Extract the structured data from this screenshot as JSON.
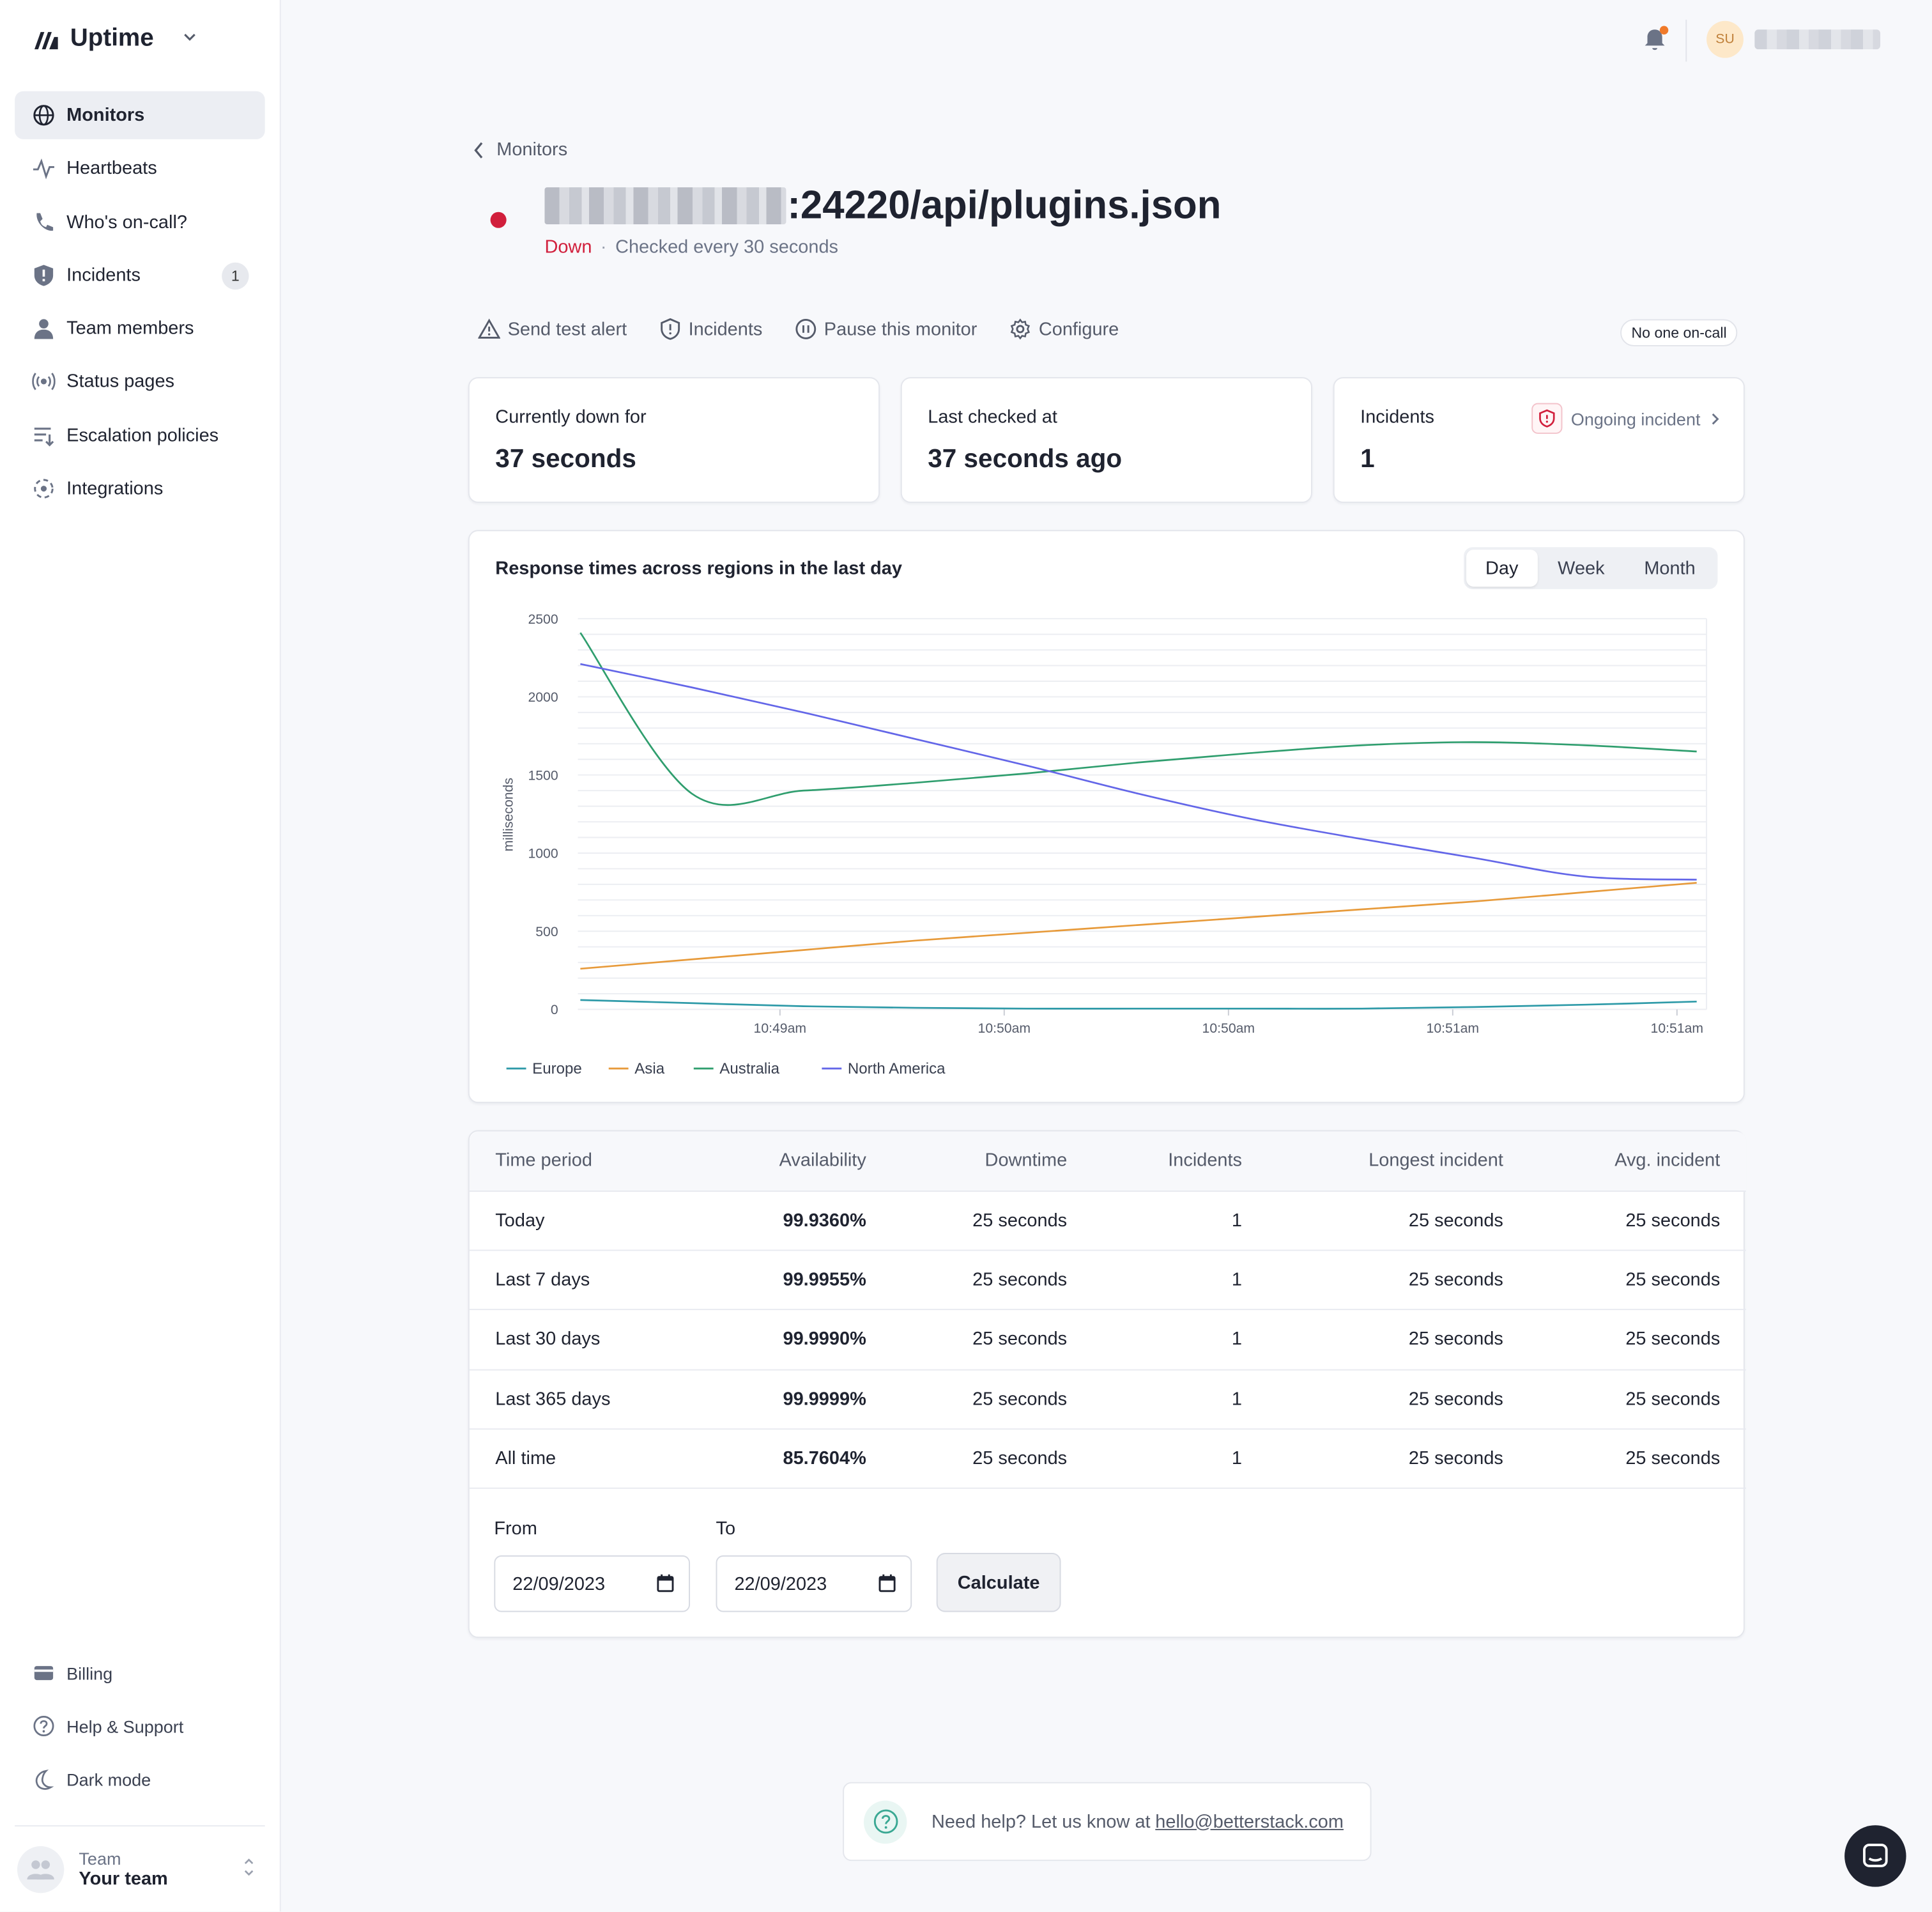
{
  "app": {
    "name": "Uptime"
  },
  "sidebar": {
    "items": [
      {
        "label": "Monitors",
        "icon": "globe-icon",
        "active": true
      },
      {
        "label": "Heartbeats",
        "icon": "pulse-icon"
      },
      {
        "label": "Who's on-call?",
        "icon": "phone-icon"
      },
      {
        "label": "Incidents",
        "icon": "shield-icon",
        "badge": "1"
      },
      {
        "label": "Team members",
        "icon": "person-icon"
      },
      {
        "label": "Status pages",
        "icon": "broadcast-icon"
      },
      {
        "label": "Escalation policies",
        "icon": "escalation-icon"
      },
      {
        "label": "Integrations",
        "icon": "integrations-icon"
      }
    ],
    "bottom": [
      {
        "label": "Billing",
        "icon": "credit-card-icon"
      },
      {
        "label": "Help & Support",
        "icon": "question-circle-icon"
      },
      {
        "label": "Dark mode",
        "icon": "moon-icon"
      }
    ],
    "team": {
      "label": "Team",
      "name": "Your team"
    }
  },
  "topbar": {
    "avatar_initials": "SU"
  },
  "header": {
    "back_label": "Monitors",
    "url_suffix": ":24220/api/plugins.json",
    "status": "Down",
    "check_interval": "Checked every 30 seconds"
  },
  "actions": {
    "send_test_alert": "Send test alert",
    "incidents": "Incidents",
    "pause": "Pause this monitor",
    "configure": "Configure",
    "oncall": "No one on-call"
  },
  "stats": {
    "down_label": "Currently down for",
    "down_value": "37 seconds",
    "checked_label": "Last checked at",
    "checked_value": "37 seconds ago",
    "incidents_label": "Incidents",
    "incidents_value": "1",
    "ongoing_label": "Ongoing incident"
  },
  "chart": {
    "title": "Response times across regions in the last day",
    "ranges": [
      "Day",
      "Week",
      "Month"
    ],
    "active_range": "Day"
  },
  "chart_data": {
    "type": "line",
    "ylabel": "milliseconds",
    "ylim": [
      0,
      2500
    ],
    "yticks": [
      0,
      500,
      1000,
      1500,
      2000,
      2500
    ],
    "xticks": [
      "10:49am",
      "10:50am",
      "10:50am",
      "10:51am",
      "10:51am"
    ],
    "x": [
      0,
      0.5,
      1,
      1.5,
      2,
      2.5,
      3,
      3.5,
      4,
      4.5,
      5
    ],
    "legend_position": "bottom-left",
    "series": [
      {
        "name": "Europe",
        "color": "#2e9aa8",
        "values": [
          60,
          40,
          20,
          10,
          5,
          5,
          5,
          5,
          15,
          30,
          50
        ]
      },
      {
        "name": "Asia",
        "color": "#e79a3a",
        "values": [
          260,
          320,
          380,
          440,
          490,
          540,
          590,
          640,
          690,
          750,
          810
        ]
      },
      {
        "name": "Australia",
        "color": "#2f9e6e",
        "values": [
          2410,
          1380,
          1400,
          1450,
          1510,
          1580,
          1640,
          1690,
          1710,
          1690,
          1650
        ]
      },
      {
        "name": "North America",
        "color": "#6366e8",
        "values": [
          2210,
          2060,
          1900,
          1730,
          1560,
          1380,
          1220,
          1090,
          970,
          850,
          830
        ]
      }
    ]
  },
  "table": {
    "headers": [
      "Time period",
      "Availability",
      "Downtime",
      "Incidents",
      "Longest incident",
      "Avg. incident"
    ],
    "rows": [
      [
        "Today",
        "99.9360%",
        "25 seconds",
        "1",
        "25 seconds",
        "25 seconds"
      ],
      [
        "Last 7 days",
        "99.9955%",
        "25 seconds",
        "1",
        "25 seconds",
        "25 seconds"
      ],
      [
        "Last 30 days",
        "99.9990%",
        "25 seconds",
        "1",
        "25 seconds",
        "25 seconds"
      ],
      [
        "Last 365 days",
        "99.9999%",
        "25 seconds",
        "1",
        "25 seconds",
        "25 seconds"
      ],
      [
        "All time",
        "85.7604%",
        "25 seconds",
        "1",
        "25 seconds",
        "25 seconds"
      ]
    ]
  },
  "range": {
    "from_label": "From",
    "to_label": "To",
    "from_value": "22/09/2023",
    "to_value": "22/09/2023",
    "calculate": "Calculate"
  },
  "help": {
    "text": "Need help? Let us know at",
    "email": "hello@betterstack.com"
  },
  "colors": {
    "down": "#d11f3c",
    "brand": "#1f2330"
  }
}
